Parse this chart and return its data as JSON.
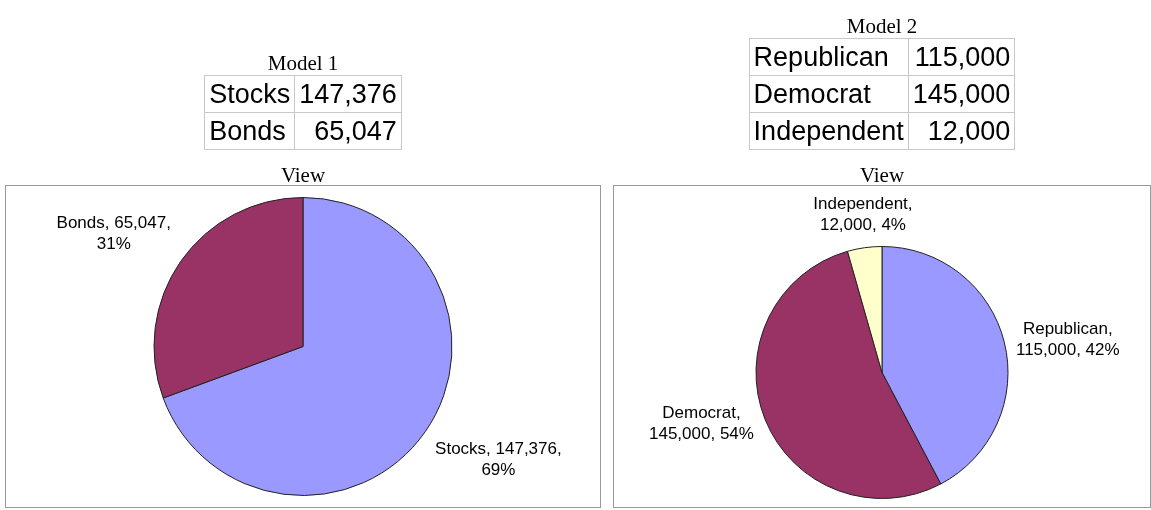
{
  "chart_data": [
    {
      "type": "other",
      "title": "Model 1",
      "categories": [
        "Stocks",
        "Bonds"
      ],
      "value_labels": [
        "147,376",
        "65,047"
      ]
    },
    {
      "type": "pie",
      "title": "View",
      "categories": [
        "Stocks",
        "Bonds"
      ],
      "values": [
        147376,
        65047
      ],
      "colors": [
        "#9999ff",
        "#993366"
      ],
      "value_labels": [
        ", 147,376, 69%",
        ", 65,047, 31%"
      ],
      "legend": false
    },
    {
      "type": "other",
      "title": "Model 2",
      "categories": [
        "Republican",
        "Democrat",
        "Independent"
      ],
      "value_labels": [
        "115,000",
        "145,000",
        "12,000"
      ]
    },
    {
      "type": "pie",
      "title": "View",
      "categories": [
        "Republican",
        "Democrat",
        "Independent"
      ],
      "values": [
        115000,
        145000,
        12000
      ],
      "colors": [
        "#9999ff",
        "#993366",
        "#ffffcc"
      ],
      "value_labels": [
        ", 115,000, 42%",
        ", 145,000, 54%",
        ", 12,000, 4%"
      ],
      "legend": false
    }
  ]
}
